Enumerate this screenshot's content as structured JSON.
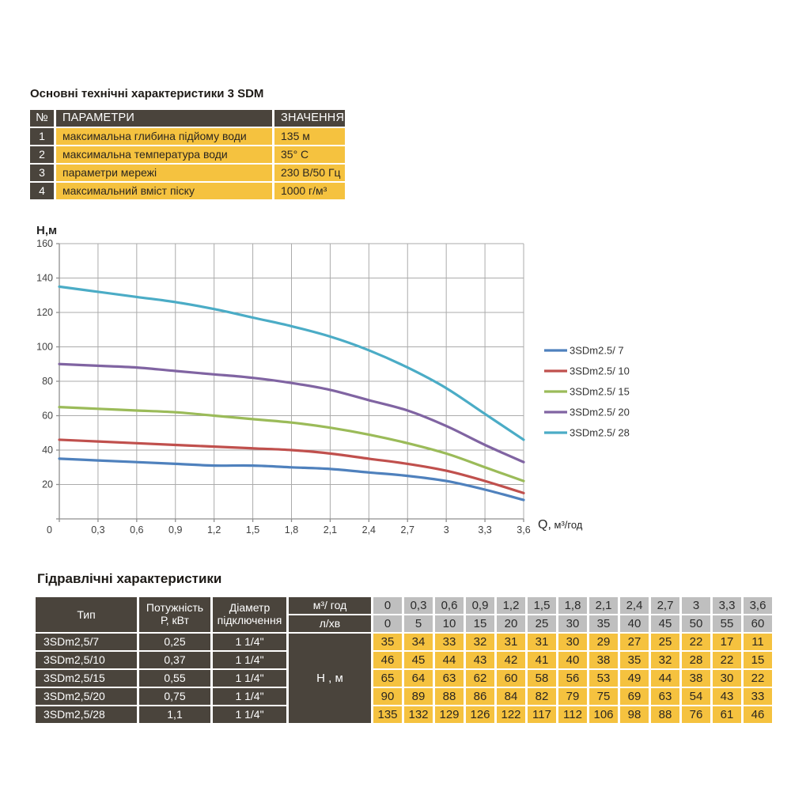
{
  "palette": {
    "dark": "#4a443c",
    "yellow": "#f5c23f",
    "grey": "#bfbfbf",
    "grid": "#ababab",
    "axis": "#8f8f8f",
    "chart_text": "#3f3f3f"
  },
  "top_table": {
    "title": "Основні технічні характеристики 3 SDM",
    "headers": {
      "num": "№",
      "param": "ПАРАМЕТРИ",
      "value": "ЗНАЧЕННЯ"
    },
    "rows": [
      {
        "num": "1",
        "param": "максимальна глибина підйому води",
        "value": "135 м"
      },
      {
        "num": "2",
        "param": "максимальна температура води",
        "value": "35° C"
      },
      {
        "num": "3",
        "param": "параметри мережі",
        "value": "230 В/50 Гц"
      },
      {
        "num": "4",
        "param": "максимальний вміст піску",
        "value": "1000 г/м³"
      }
    ]
  },
  "chart_data": {
    "type": "line",
    "title": "",
    "ylabel": "Н,м",
    "xlabel": "Q,  м³/год",
    "x": [
      0,
      0.3,
      0.6,
      0.9,
      1.2,
      1.5,
      1.8,
      2.1,
      2.4,
      2.7,
      3,
      3.3,
      3.6
    ],
    "xtick_labels": [
      "0",
      "0,3",
      "0,6",
      "0,9",
      "1,2",
      "1,5",
      "1,8",
      "2,1",
      "2,4",
      "2,7",
      "3",
      "3,3",
      "3,6"
    ],
    "xlim": [
      0,
      3.6
    ],
    "ylim": [
      0,
      160
    ],
    "ytick_step": 20,
    "grid": true,
    "legend_position": "right",
    "series": [
      {
        "name": "3SDm2.5/ 7",
        "color": "#4f81bd",
        "values": [
          35,
          34,
          33,
          32,
          31,
          31,
          30,
          29,
          27,
          25,
          22,
          17,
          11
        ]
      },
      {
        "name": "3SDm2.5/ 10",
        "color": "#c0504d",
        "values": [
          46,
          45,
          44,
          43,
          42,
          41,
          40,
          38,
          35,
          32,
          28,
          22,
          15
        ]
      },
      {
        "name": "3SDm2.5/ 15",
        "color": "#9bbb59",
        "values": [
          65,
          64,
          63,
          62,
          60,
          58,
          56,
          53,
          49,
          44,
          38,
          30,
          22
        ]
      },
      {
        "name": "3SDm2.5/ 20",
        "color": "#8064a2",
        "values": [
          90,
          89,
          88,
          86,
          84,
          82,
          79,
          75,
          69,
          63,
          54,
          43,
          33
        ]
      },
      {
        "name": "3SDm2.5/ 28",
        "color": "#4bacc6",
        "values": [
          135,
          132,
          129,
          126,
          122,
          117,
          112,
          106,
          98,
          88,
          76,
          61,
          46
        ]
      }
    ]
  },
  "hydraulic_table": {
    "title": "Гідравлічні характеристики",
    "headers": {
      "type": "Тип",
      "power": [
        "Потужність",
        "Р, кВт"
      ],
      "diameter": [
        "Діаметр",
        "підключення"
      ],
      "flow_m3": "м³/ год",
      "flow_lmin": "л/хв",
      "head": "Н , м"
    },
    "flow_m3_values": [
      "0",
      "0,3",
      "0,6",
      "0,9",
      "1,2",
      "1,5",
      "1,8",
      "2,1",
      "2,4",
      "2,7",
      "3",
      "3,3",
      "3,6"
    ],
    "flow_lmin_values": [
      "0",
      "5",
      "10",
      "15",
      "20",
      "25",
      "30",
      "35",
      "40",
      "45",
      "50",
      "55",
      "60"
    ],
    "rows": [
      {
        "type": "3SDm2,5/7",
        "power": "0,25",
        "diameter": "1 1/4\"",
        "head_values": [
          "35",
          "34",
          "33",
          "32",
          "31",
          "31",
          "30",
          "29",
          "27",
          "25",
          "22",
          "17",
          "11"
        ]
      },
      {
        "type": "3SDm2,5/10",
        "power": "0,37",
        "diameter": "1 1/4\"",
        "head_values": [
          "46",
          "45",
          "44",
          "43",
          "42",
          "41",
          "40",
          "38",
          "35",
          "32",
          "28",
          "22",
          "15"
        ]
      },
      {
        "type": "3SDm2,5/15",
        "power": "0,55",
        "diameter": "1 1/4\"",
        "head_values": [
          "65",
          "64",
          "63",
          "62",
          "60",
          "58",
          "56",
          "53",
          "49",
          "44",
          "38",
          "30",
          "22"
        ]
      },
      {
        "type": "3SDm2,5/20",
        "power": "0,75",
        "diameter": "1 1/4\"",
        "head_values": [
          "90",
          "89",
          "88",
          "86",
          "84",
          "82",
          "79",
          "75",
          "69",
          "63",
          "54",
          "43",
          "33"
        ]
      },
      {
        "type": "3SDm2,5/28",
        "power": "1,1",
        "diameter": "1 1/4\"",
        "head_values": [
          "135",
          "132",
          "129",
          "126",
          "122",
          "117",
          "112",
          "106",
          "98",
          "88",
          "76",
          "61",
          "46"
        ]
      }
    ]
  }
}
